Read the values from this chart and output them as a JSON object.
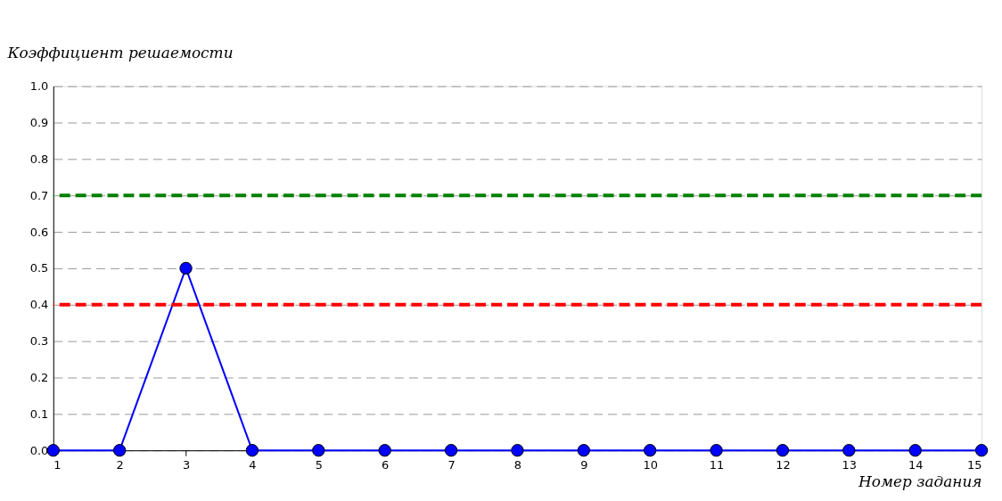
{
  "chart_data": {
    "type": "line",
    "xlabel": "Номер задания",
    "ylabel": "Коэффициент решаемости",
    "x": [
      1,
      2,
      3,
      4,
      5,
      6,
      7,
      8,
      9,
      10,
      11,
      12,
      13,
      14,
      15
    ],
    "series": [
      {
        "color": "#0000ff",
        "values": [
          0,
          0,
          0.5,
          0,
          0,
          0,
          0,
          0,
          0,
          0,
          0,
          0,
          0,
          0,
          0
        ]
      }
    ],
    "xlim": [
      1,
      15
    ],
    "xticks": [
      1,
      2,
      3,
      4,
      5,
      6,
      7,
      8,
      9,
      10,
      11,
      12,
      13,
      14,
      15
    ],
    "ylim": [
      0,
      1
    ],
    "yticks": [
      {
        "value": 0,
        "label": "0.0"
      },
      0.1,
      0.2,
      0.3,
      0.4,
      0.5,
      0.6,
      0.7,
      0.8,
      0.9,
      {
        "value": 1,
        "label": "1.0"
      }
    ],
    "ref_lines": [
      {
        "axis": "y",
        "value": 0.7,
        "color": "#008000",
        "line_style": "dashed"
      },
      {
        "axis": "y",
        "value": 0.4,
        "color": "#ff0000",
        "line_style": "dashed"
      }
    ],
    "grid": "y",
    "marker": "circle",
    "line_style": "solid"
  }
}
